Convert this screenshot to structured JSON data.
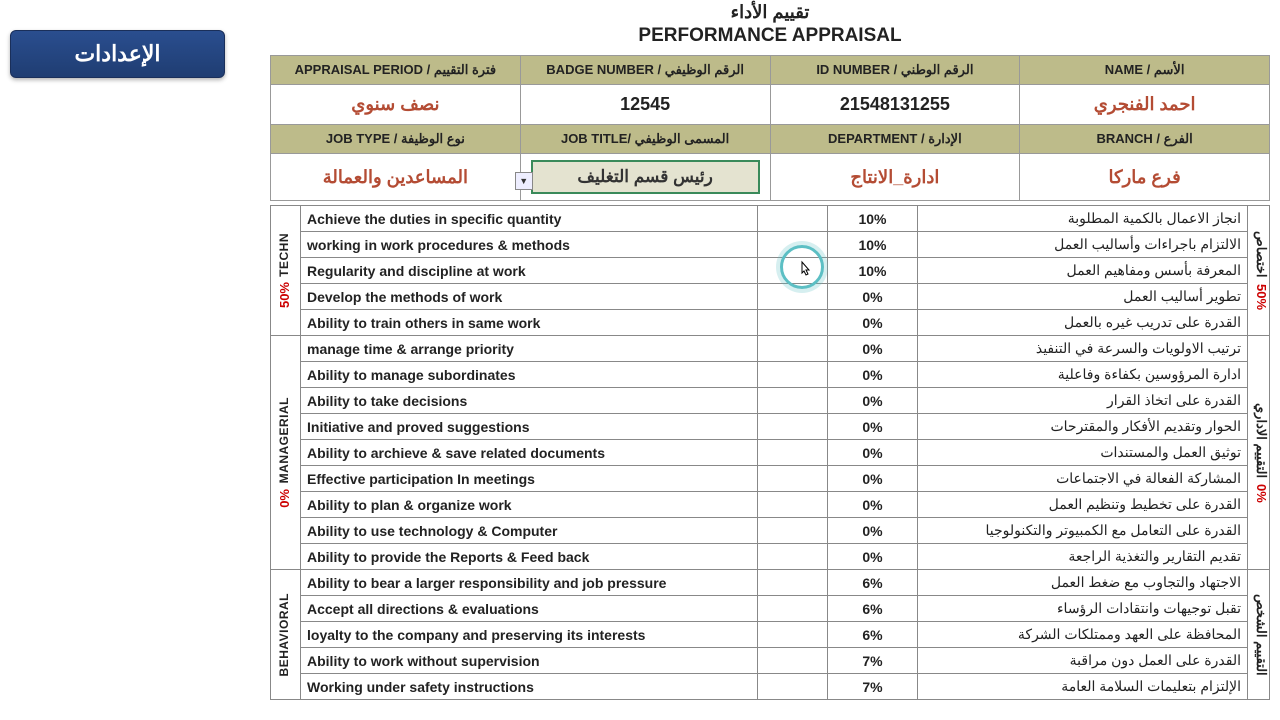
{
  "settings_label": "الإعدادات",
  "title_ar": "تقييم الأداء",
  "title_en": "PERFORMANCE APPRAISAL",
  "hdr1": {
    "appraisal_period_lbl": "APPRAISAL PERIOD / فترة التقييم",
    "badge_lbl": "BADGE NUMBER / الرقم الوظيفي",
    "id_lbl": "ID NUMBER / الرقم الوطني",
    "name_lbl": "NAME / الأسم",
    "appraisal_period": "نصف سنوي",
    "badge": "12545",
    "id": "21548131255",
    "name": "احمد الفنجري"
  },
  "hdr2": {
    "jobtype_lbl": "JOB TYPE / نوع الوظيفة",
    "jobtitle_lbl": "JOB TITLE/ المسمى الوظيفي",
    "dept_lbl": "DEPARTMENT / الإدارة",
    "branch_lbl": "BRANCH / الفرع",
    "jobtype": "المساعدين والعمالة",
    "jobtitle": "رئيس قسم التغليف",
    "dept": "ادارة_الانتاج",
    "branch": "فرع ماركا"
  },
  "sections": [
    {
      "cat_en": "TECHN",
      "cat_ar": "اختصاص",
      "pct": "50%",
      "rows": [
        {
          "en": "Achieve the duties in specific quantity",
          "pct": "10%",
          "ar": "انجاز الاعمال بالكمية المطلوبة"
        },
        {
          "en": "working in work procedures & methods",
          "pct": "10%",
          "ar": "الالتزام باجراءات وأساليب العمل"
        },
        {
          "en": "Regularity and discipline at work",
          "pct": "10%",
          "ar": "المعرفة بأسس ومفاهيم العمل"
        },
        {
          "en": "Develop the methods of work",
          "pct": "0%",
          "ar": "تطوير أساليب العمل"
        },
        {
          "en": "Ability to train others in same work",
          "pct": "0%",
          "ar": "القدرة على تدريب غيره بالعمل"
        }
      ]
    },
    {
      "cat_en": "MANAGERIAL",
      "cat_ar": "التقييم الاداري",
      "pct": "0%",
      "rows": [
        {
          "en": "manage time & arrange priority",
          "pct": "0%",
          "ar": "ترتيب الاولويات والسرعة في التنفيذ"
        },
        {
          "en": "Ability to manage subordinates",
          "pct": "0%",
          "ar": "ادارة المرؤوسين بكفاءة وفاعلية"
        },
        {
          "en": "Ability to take decisions",
          "pct": "0%",
          "ar": "القدرة على اتخاذ القرار"
        },
        {
          "en": "Initiative and proved suggestions",
          "pct": "0%",
          "ar": "الحوار وتقديم الأفكار والمقترحات"
        },
        {
          "en": "Ability to archieve & save related documents",
          "pct": "0%",
          "ar": "توثيق العمل والمستندات"
        },
        {
          "en": "Effective participation In meetings",
          "pct": "0%",
          "ar": "المشاركة الفعالة في الاجتماعات"
        },
        {
          "en": "Ability to plan & organize work",
          "pct": "0%",
          "ar": "القدرة على تخطيط وتنظيم العمل"
        },
        {
          "en": "Ability to use technology & Computer",
          "pct": "0%",
          "ar": "القدرة على التعامل مع الكمبيوتر والتكنولوجيا"
        },
        {
          "en": "Ability to provide the Reports & Feed back",
          "pct": "0%",
          "ar": "تقديم التقارير والتغذية الراجعة"
        }
      ]
    },
    {
      "cat_en": "BEHAVIORAL",
      "cat_ar": "التقييم الشخص",
      "pct": "",
      "rows": [
        {
          "en": "Ability to bear a larger responsibility and job pressure",
          "pct": "6%",
          "ar": "الاجتهاد والتجاوب مع ضغط العمل"
        },
        {
          "en": "Accept all directions & evaluations",
          "pct": "6%",
          "ar": "تقبل توجيهات وانتقادات الرؤساء"
        },
        {
          "en": "loyalty to the company and preserving its interests",
          "pct": "6%",
          "ar": "المحافظة على العهد وممتلكات الشركة"
        },
        {
          "en": "Ability to work without supervision",
          "pct": "7%",
          "ar": "القدرة على العمل دون مراقبة"
        },
        {
          "en": "Working under safety instructions",
          "pct": "7%",
          "ar": "الإلتزام بتعليمات السلامة العامة"
        }
      ]
    }
  ],
  "colwidths": {
    "cat_en": "30",
    "en": "440",
    "score": "70",
    "pct": "90",
    "ar": "320",
    "cat_ar": "22"
  }
}
